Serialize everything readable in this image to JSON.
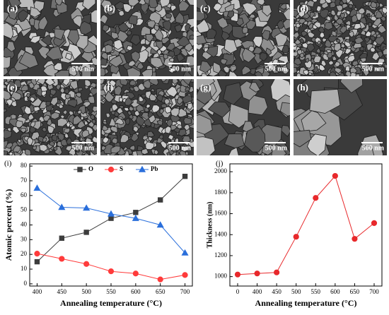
{
  "images": [
    {
      "label": "(a)",
      "scale_bar": "500 nm"
    },
    {
      "label": "(b)",
      "scale_bar": "500 nm"
    },
    {
      "label": "(c)",
      "scale_bar": "500 nm"
    },
    {
      "label": "(d)",
      "scale_bar": "500 nm"
    },
    {
      "label": "(e)",
      "scale_bar": "500 nm"
    },
    {
      "label": "(f)",
      "scale_bar": "500 nm"
    },
    {
      "label": "(g)",
      "scale_bar": "500 nm"
    },
    {
      "label": "(h)",
      "scale_bar": "500 nm"
    }
  ],
  "chart_data": [
    {
      "type": "line",
      "annotation": "(i)",
      "x_label": "Annealing temperature (°C)",
      "y_label": "Atomic percent (%)",
      "x": [
        400,
        450,
        500,
        550,
        600,
        650,
        700
      ],
      "series": [
        {
          "name": "O",
          "color": "#3c3c3c",
          "marker": "square",
          "values": [
            15,
            31,
            35,
            44.5,
            48.5,
            57,
            73
          ]
        },
        {
          "name": "S",
          "color": "#ff3b3b",
          "marker": "circle",
          "values": [
            20.5,
            17,
            13.5,
            8.5,
            7,
            3,
            6
          ]
        },
        {
          "name": "Pb",
          "color": "#2a6fdb",
          "marker": "triangle",
          "values": [
            65,
            52,
            51.5,
            47.5,
            44.5,
            40,
            21
          ]
        }
      ],
      "xlim": [
        385,
        715
      ],
      "xticks": [
        400,
        450,
        500,
        550,
        600,
        650,
        700
      ],
      "ylim": [
        -1.5,
        81.5
      ],
      "yticks": [
        0,
        10,
        20,
        30,
        40,
        50,
        60,
        70,
        80
      ],
      "legend": "top"
    },
    {
      "type": "line",
      "annotation": "(j)",
      "x_label": "Annealing temperature (°C)",
      "y_label": "Thickness (nm)",
      "categories": [
        0,
        400,
        450,
        500,
        550,
        600,
        650,
        700
      ],
      "values": [
        1020,
        1030,
        1040,
        1380,
        1750,
        1960,
        1360,
        1510
      ],
      "color": "#e8282b",
      "ylim": [
        910,
        2075
      ],
      "yticks": [
        1000,
        1200,
        1400,
        1600,
        1800,
        2000
      ]
    }
  ]
}
